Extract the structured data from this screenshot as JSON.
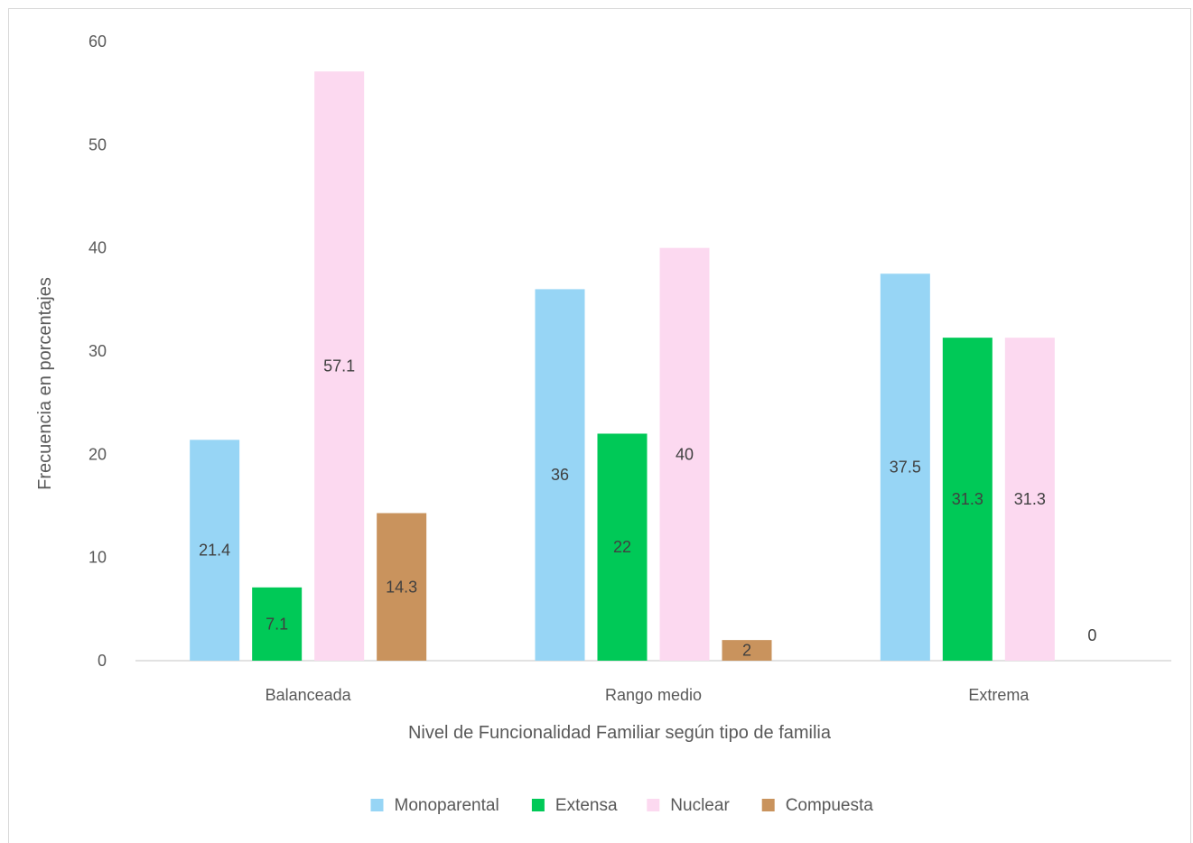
{
  "chart_data": {
    "type": "bar",
    "categories": [
      "Balanceada",
      "Rango medio",
      "Extrema"
    ],
    "series": [
      {
        "name": "Monoparental",
        "values": [
          21.4,
          36,
          37.5
        ],
        "color": "#97d5f5"
      },
      {
        "name": "Extensa",
        "values": [
          7.1,
          22,
          31.3
        ],
        "color": "#00c957"
      },
      {
        "name": "Nuclear",
        "values": [
          57.1,
          40,
          31.3
        ],
        "color": "#fcd9f0"
      },
      {
        "name": "Compuesta",
        "values": [
          14.3,
          2,
          0
        ],
        "color": "#c9935d"
      }
    ],
    "xlabel": "Nivel de Funcionalidad Familiar según tipo de familia",
    "ylabel": "Frecuencia en porcentajes",
    "ylim": [
      0,
      60
    ],
    "yticks": [
      0,
      10,
      20,
      30,
      40,
      50,
      60
    ],
    "grid": false,
    "legend": "bottom"
  }
}
